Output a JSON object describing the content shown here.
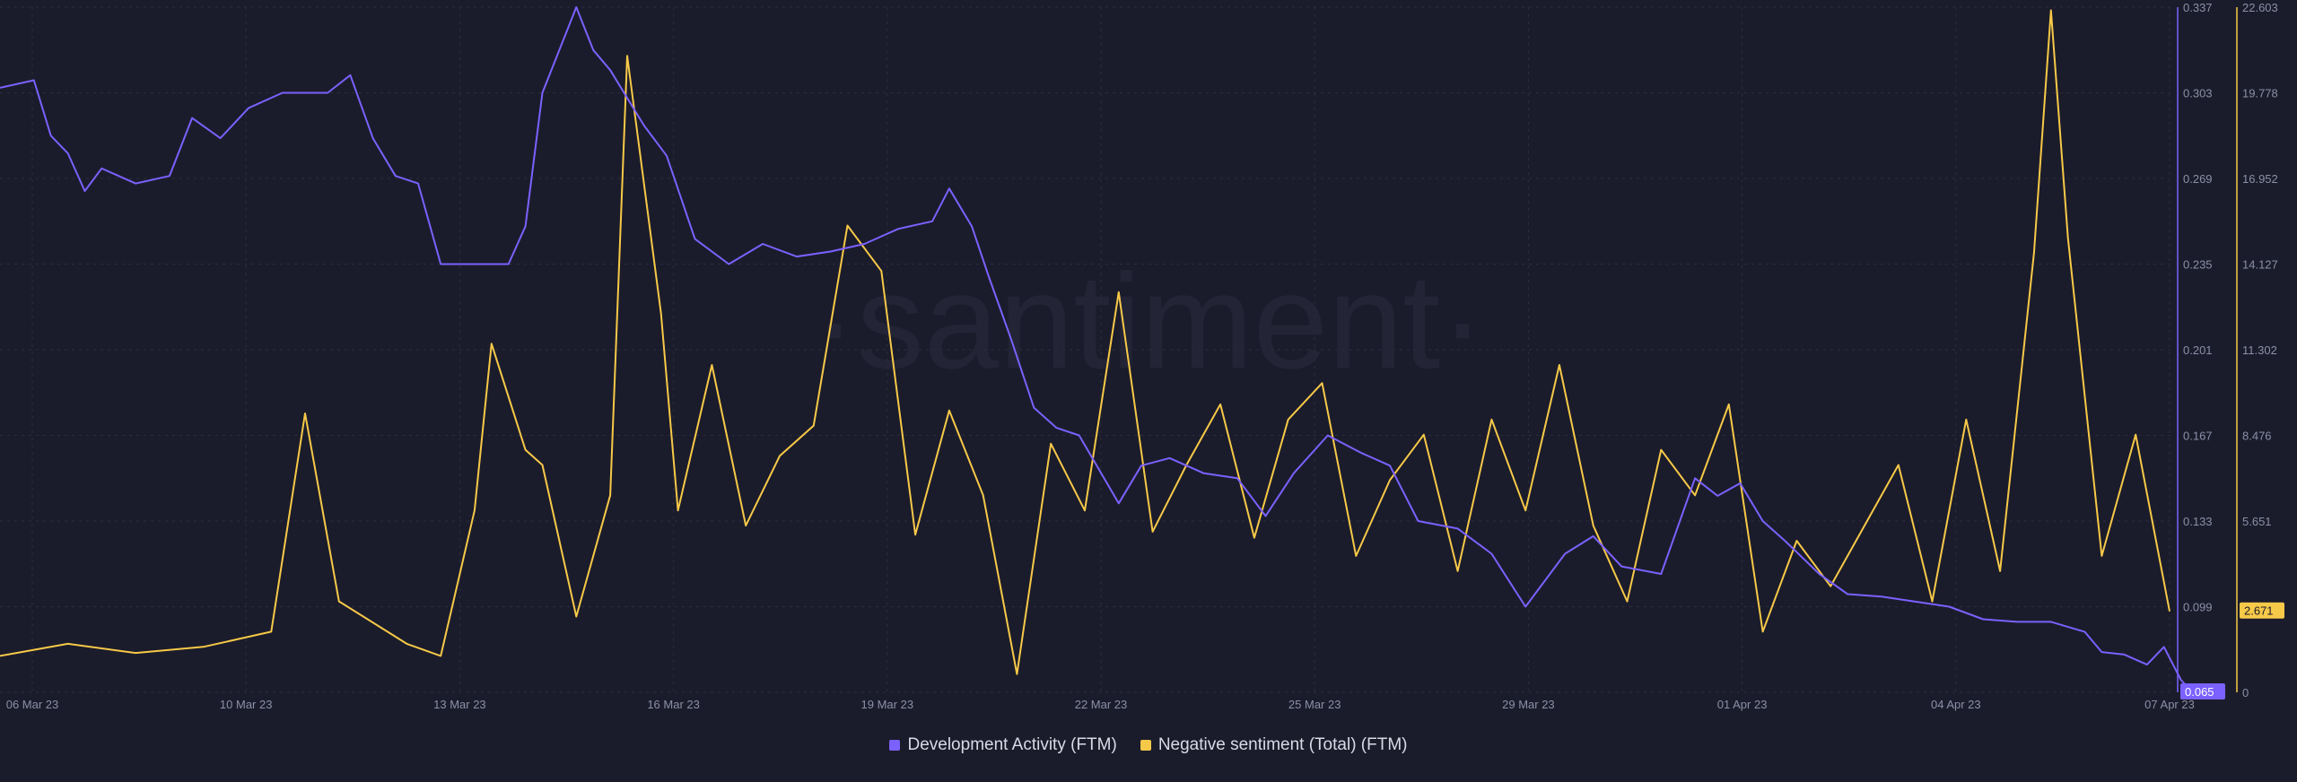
{
  "watermark": "·santiment·",
  "chart_data": {
    "type": "line",
    "x_axis": {
      "tick_labels": [
        "06 Mar 23",
        "10 Mar 23",
        "13 Mar 23",
        "16 Mar 23",
        "19 Mar 23",
        "22 Mar 23",
        "25 Mar 23",
        "29 Mar 23",
        "01 Apr 23",
        "04 Apr 23",
        "07 Apr 23"
      ],
      "range": [
        "2023-03-06",
        "2023-04-07"
      ]
    },
    "y_axes": {
      "left_series": {
        "tick_labels": [
          "0.337",
          "0.303",
          "0.269",
          "0.235",
          "0.201",
          "0.167",
          "0.133",
          "0.099",
          "0.065"
        ],
        "range": [
          0.065,
          0.337
        ]
      },
      "right_series": {
        "tick_labels": [
          "22.603",
          "19.778",
          "16.952",
          "14.127",
          "11.302",
          "8.476",
          "5.651",
          "2.671",
          "0"
        ],
        "range": [
          0,
          22.603
        ]
      }
    },
    "series": [
      {
        "name": "Development Activity (FTM)",
        "color": "#7b61ff",
        "axis": "right-inner",
        "current_value": "0.065",
        "points": [
          [
            "2023-03-06T00:00",
            0.305
          ],
          [
            "2023-03-06T12:00",
            0.308
          ],
          [
            "2023-03-06T18:00",
            0.286
          ],
          [
            "2023-03-07T00:00",
            0.279
          ],
          [
            "2023-03-07T06:00",
            0.264
          ],
          [
            "2023-03-07T12:00",
            0.273
          ],
          [
            "2023-03-08T00:00",
            0.267
          ],
          [
            "2023-03-08T12:00",
            0.27
          ],
          [
            "2023-03-08T20:00",
            0.293
          ],
          [
            "2023-03-09T06:00",
            0.285
          ],
          [
            "2023-03-09T16:00",
            0.297
          ],
          [
            "2023-03-10T04:00",
            0.303
          ],
          [
            "2023-03-10T20:00",
            0.303
          ],
          [
            "2023-03-11T04:00",
            0.31
          ],
          [
            "2023-03-11T12:00",
            0.285
          ],
          [
            "2023-03-11T20:00",
            0.27
          ],
          [
            "2023-03-12T04:00",
            0.267
          ],
          [
            "2023-03-12T12:00",
            0.235
          ],
          [
            "2023-03-13T12:00",
            0.235
          ],
          [
            "2023-03-13T18:00",
            0.25
          ],
          [
            "2023-03-14T00:00",
            0.303
          ],
          [
            "2023-03-14T06:00",
            0.32
          ],
          [
            "2023-03-14T12:00",
            0.337
          ],
          [
            "2023-03-14T18:00",
            0.32
          ],
          [
            "2023-03-15T00:00",
            0.312
          ],
          [
            "2023-03-15T12:00",
            0.29
          ],
          [
            "2023-03-15T20:00",
            0.278
          ],
          [
            "2023-03-16T06:00",
            0.245
          ],
          [
            "2023-03-16T18:00",
            0.235
          ],
          [
            "2023-03-17T06:00",
            0.243
          ],
          [
            "2023-03-17T18:00",
            0.238
          ],
          [
            "2023-03-18T06:00",
            0.24
          ],
          [
            "2023-03-18T18:00",
            0.243
          ],
          [
            "2023-03-19T06:00",
            0.249
          ],
          [
            "2023-03-19T18:00",
            0.252
          ],
          [
            "2023-03-20T00:00",
            0.265
          ],
          [
            "2023-03-20T08:00",
            0.25
          ],
          [
            "2023-03-20T14:00",
            0.23
          ],
          [
            "2023-03-20T22:00",
            0.205
          ],
          [
            "2023-03-21T06:00",
            0.178
          ],
          [
            "2023-03-21T14:00",
            0.17
          ],
          [
            "2023-03-21T22:00",
            0.167
          ],
          [
            "2023-03-22T12:00",
            0.14
          ],
          [
            "2023-03-22T20:00",
            0.155
          ],
          [
            "2023-03-23T06:00",
            0.158
          ],
          [
            "2023-03-23T18:00",
            0.152
          ],
          [
            "2023-03-24T06:00",
            0.15
          ],
          [
            "2023-03-24T16:00",
            0.135
          ],
          [
            "2023-03-25T02:00",
            0.152
          ],
          [
            "2023-03-25T14:00",
            0.167
          ],
          [
            "2023-03-26T02:00",
            0.16
          ],
          [
            "2023-03-26T12:00",
            0.155
          ],
          [
            "2023-03-26T22:00",
            0.133
          ],
          [
            "2023-03-27T12:00",
            0.13
          ],
          [
            "2023-03-28T00:00",
            0.12
          ],
          [
            "2023-03-28T12:00",
            0.099
          ],
          [
            "2023-03-29T02:00",
            0.12
          ],
          [
            "2023-03-29T12:00",
            0.127
          ],
          [
            "2023-03-29T22:00",
            0.115
          ],
          [
            "2023-03-30T12:00",
            0.112
          ],
          [
            "2023-03-31T00:00",
            0.15
          ],
          [
            "2023-03-31T08:00",
            0.143
          ],
          [
            "2023-03-31T16:00",
            0.148
          ],
          [
            "2023-04-01T00:00",
            0.133
          ],
          [
            "2023-04-01T08:00",
            0.125
          ],
          [
            "2023-04-01T20:00",
            0.112
          ],
          [
            "2023-04-02T06:00",
            0.104
          ],
          [
            "2023-04-02T18:00",
            0.103
          ],
          [
            "2023-04-03T06:00",
            0.101
          ],
          [
            "2023-04-03T18:00",
            0.099
          ],
          [
            "2023-04-04T06:00",
            0.094
          ],
          [
            "2023-04-04T18:00",
            0.093
          ],
          [
            "2023-04-05T06:00",
            0.093
          ],
          [
            "2023-04-05T18:00",
            0.089
          ],
          [
            "2023-04-06T00:00",
            0.081
          ],
          [
            "2023-04-06T08:00",
            0.08
          ],
          [
            "2023-04-06T16:00",
            0.076
          ],
          [
            "2023-04-06T22:00",
            0.083
          ],
          [
            "2023-04-07T04:00",
            0.07
          ],
          [
            "2023-04-07T08:00",
            0.065
          ]
        ]
      },
      {
        "name": "Negative sentiment (Total) (FTM)",
        "color": "#f7c948",
        "axis": "right-outer",
        "current_value": "2.671",
        "points": [
          [
            "2023-03-06",
            1.2
          ],
          [
            "2023-03-07",
            1.6
          ],
          [
            "2023-03-08",
            1.3
          ],
          [
            "2023-03-09",
            1.5
          ],
          [
            "2023-03-10",
            2.0
          ],
          [
            "2023-03-10T12:00",
            9.2
          ],
          [
            "2023-03-11",
            3.0
          ],
          [
            "2023-03-12",
            1.6
          ],
          [
            "2023-03-12T12:00",
            1.2
          ],
          [
            "2023-03-13",
            6.0
          ],
          [
            "2023-03-13T06:00",
            11.5
          ],
          [
            "2023-03-13T18:00",
            8.0
          ],
          [
            "2023-03-14",
            7.5
          ],
          [
            "2023-03-14T12:00",
            2.5
          ],
          [
            "2023-03-15",
            6.5
          ],
          [
            "2023-03-15T06:00",
            21.0
          ],
          [
            "2023-03-15T18:00",
            12.5
          ],
          [
            "2023-03-16",
            6.0
          ],
          [
            "2023-03-16T12:00",
            10.8
          ],
          [
            "2023-03-17",
            5.5
          ],
          [
            "2023-03-17T12:00",
            7.8
          ],
          [
            "2023-03-18",
            8.8
          ],
          [
            "2023-03-18T12:00",
            15.4
          ],
          [
            "2023-03-19",
            13.9
          ],
          [
            "2023-03-19T12:00",
            5.2
          ],
          [
            "2023-03-20",
            9.3
          ],
          [
            "2023-03-20T12:00",
            6.5
          ],
          [
            "2023-03-21",
            0.6
          ],
          [
            "2023-03-21T12:00",
            8.2
          ],
          [
            "2023-03-22",
            6.0
          ],
          [
            "2023-03-22T12:00",
            13.2
          ],
          [
            "2023-03-23",
            5.3
          ],
          [
            "2023-03-23T12:00",
            7.5
          ],
          [
            "2023-03-24",
            9.5
          ],
          [
            "2023-03-24T12:00",
            5.1
          ],
          [
            "2023-03-25",
            9.0
          ],
          [
            "2023-03-25T12:00",
            10.2
          ],
          [
            "2023-03-26",
            4.5
          ],
          [
            "2023-03-26T12:00",
            7.0
          ],
          [
            "2023-03-27",
            8.5
          ],
          [
            "2023-03-27T12:00",
            4.0
          ],
          [
            "2023-03-28",
            9.0
          ],
          [
            "2023-03-28T12:00",
            6.0
          ],
          [
            "2023-03-29",
            10.8
          ],
          [
            "2023-03-29T12:00",
            5.5
          ],
          [
            "2023-03-30",
            3.0
          ],
          [
            "2023-03-30T12:00",
            8.0
          ],
          [
            "2023-03-31",
            6.5
          ],
          [
            "2023-03-31T12:00",
            9.5
          ],
          [
            "2023-04-01",
            2.0
          ],
          [
            "2023-04-01T12:00",
            5.0
          ],
          [
            "2023-04-02",
            3.5
          ],
          [
            "2023-04-02T12:00",
            5.5
          ],
          [
            "2023-04-03",
            7.5
          ],
          [
            "2023-04-03T12:00",
            3.0
          ],
          [
            "2023-04-04",
            9.0
          ],
          [
            "2023-04-04T12:00",
            4.0
          ],
          [
            "2023-04-05",
            14.5
          ],
          [
            "2023-04-05T06:00",
            22.5
          ],
          [
            "2023-04-05T12:00",
            15.0
          ],
          [
            "2023-04-06",
            4.5
          ],
          [
            "2023-04-06T12:00",
            8.5
          ],
          [
            "2023-04-07",
            2.671
          ]
        ]
      }
    ],
    "legend_position": "bottom-center",
    "grid": true
  }
}
